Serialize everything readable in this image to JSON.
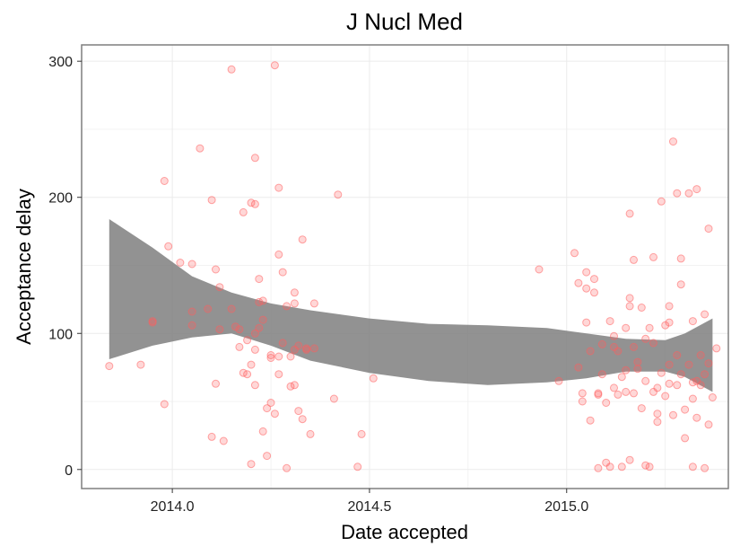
{
  "chart_data": {
    "type": "scatter",
    "title": "J Nucl Med",
    "xlabel": "Date accepted",
    "ylabel": "Acceptance delay",
    "xlim": [
      2013.77,
      2015.41
    ],
    "ylim": [
      -14,
      312
    ],
    "x_ticks": [
      2014.0,
      2014.5,
      2015.0
    ],
    "x_tick_labels": [
      "2014.0",
      "2014.5",
      "2015.0"
    ],
    "y_ticks": [
      0,
      100,
      200,
      300
    ],
    "y_tick_labels": [
      "0",
      "100",
      "200",
      "300"
    ],
    "grid": true,
    "legend": "none",
    "colors": {
      "points": "#ff5f5f",
      "band": "#7f7f7f",
      "grid": "#ebebeb",
      "border": "#7f7f7f"
    },
    "band": {
      "x": [
        2013.84,
        2013.95,
        2014.05,
        2014.15,
        2014.25,
        2014.35,
        2014.5,
        2014.65,
        2014.8,
        2014.95,
        2015.05,
        2015.15,
        2015.25,
        2015.3,
        2015.37
      ],
      "upper": [
        184,
        163,
        142,
        130,
        122,
        117,
        111,
        107,
        106,
        104,
        100,
        96,
        95,
        100,
        111
      ],
      "lower": [
        81,
        91,
        97,
        100,
        91,
        80,
        71,
        65,
        62,
        64,
        67,
        72,
        72,
        68,
        57
      ]
    },
    "points": [
      [
        2013.84,
        76
      ],
      [
        2013.92,
        77
      ],
      [
        2013.95,
        108
      ],
      [
        2013.95,
        109
      ],
      [
        2013.98,
        212
      ],
      [
        2013.98,
        48
      ],
      [
        2013.99,
        164
      ],
      [
        2014.02,
        152
      ],
      [
        2014.05,
        116
      ],
      [
        2014.05,
        106
      ],
      [
        2014.05,
        151
      ],
      [
        2014.07,
        236
      ],
      [
        2014.09,
        118
      ],
      [
        2014.1,
        24
      ],
      [
        2014.1,
        198
      ],
      [
        2014.11,
        147
      ],
      [
        2014.11,
        63
      ],
      [
        2014.12,
        134
      ],
      [
        2014.12,
        103
      ],
      [
        2014.13,
        21
      ],
      [
        2014.15,
        294
      ],
      [
        2014.15,
        118
      ],
      [
        2014.16,
        105
      ],
      [
        2014.17,
        90
      ],
      [
        2014.17,
        103
      ],
      [
        2014.18,
        71
      ],
      [
        2014.18,
        189
      ],
      [
        2014.19,
        70
      ],
      [
        2014.19,
        95
      ],
      [
        2014.2,
        196
      ],
      [
        2014.2,
        77
      ],
      [
        2014.2,
        4
      ],
      [
        2014.21,
        229
      ],
      [
        2014.21,
        195
      ],
      [
        2014.21,
        100
      ],
      [
        2014.21,
        88
      ],
      [
        2014.21,
        62
      ],
      [
        2014.22,
        123
      ],
      [
        2014.22,
        140
      ],
      [
        2014.22,
        104
      ],
      [
        2014.23,
        124
      ],
      [
        2014.23,
        110
      ],
      [
        2014.23,
        28
      ],
      [
        2014.24,
        10
      ],
      [
        2014.24,
        45
      ],
      [
        2014.25,
        82
      ],
      [
        2014.25,
        49
      ],
      [
        2014.25,
        84
      ],
      [
        2014.26,
        297
      ],
      [
        2014.26,
        41
      ],
      [
        2014.27,
        207
      ],
      [
        2014.27,
        158
      ],
      [
        2014.27,
        70
      ],
      [
        2014.27,
        83
      ],
      [
        2014.28,
        145
      ],
      [
        2014.28,
        93
      ],
      [
        2014.29,
        120
      ],
      [
        2014.29,
        1
      ],
      [
        2014.3,
        83
      ],
      [
        2014.3,
        61
      ],
      [
        2014.31,
        62
      ],
      [
        2014.31,
        130
      ],
      [
        2014.31,
        122
      ],
      [
        2014.31,
        88
      ],
      [
        2014.32,
        43
      ],
      [
        2014.32,
        91
      ],
      [
        2014.33,
        169
      ],
      [
        2014.33,
        37
      ],
      [
        2014.34,
        89
      ],
      [
        2014.34,
        88
      ],
      [
        2014.35,
        26
      ],
      [
        2014.36,
        122
      ],
      [
        2014.36,
        89
      ],
      [
        2014.41,
        52
      ],
      [
        2014.42,
        202
      ],
      [
        2014.47,
        2
      ],
      [
        2014.48,
        26
      ],
      [
        2014.51,
        67
      ],
      [
        2014.93,
        147
      ],
      [
        2014.98,
        65
      ],
      [
        2015.02,
        159
      ],
      [
        2015.03,
        137
      ],
      [
        2015.03,
        75
      ],
      [
        2015.04,
        56
      ],
      [
        2015.04,
        50
      ],
      [
        2015.05,
        145
      ],
      [
        2015.05,
        133
      ],
      [
        2015.05,
        108
      ],
      [
        2015.06,
        87
      ],
      [
        2015.06,
        36
      ],
      [
        2015.07,
        140
      ],
      [
        2015.07,
        130
      ],
      [
        2015.08,
        55
      ],
      [
        2015.08,
        56
      ],
      [
        2015.08,
        1
      ],
      [
        2015.09,
        92
      ],
      [
        2015.09,
        70
      ],
      [
        2015.1,
        5
      ],
      [
        2015.1,
        49
      ],
      [
        2015.11,
        109
      ],
      [
        2015.11,
        2
      ],
      [
        2015.12,
        98
      ],
      [
        2015.12,
        90
      ],
      [
        2015.12,
        60
      ],
      [
        2015.13,
        87
      ],
      [
        2015.13,
        55
      ],
      [
        2015.14,
        68
      ],
      [
        2015.14,
        2
      ],
      [
        2015.15,
        104
      ],
      [
        2015.15,
        73
      ],
      [
        2015.15,
        57
      ],
      [
        2015.16,
        126
      ],
      [
        2015.16,
        120
      ],
      [
        2015.16,
        188
      ],
      [
        2015.16,
        7
      ],
      [
        2015.17,
        154
      ],
      [
        2015.17,
        56
      ],
      [
        2015.17,
        90
      ],
      [
        2015.18,
        79
      ],
      [
        2015.18,
        74
      ],
      [
        2015.19,
        119
      ],
      [
        2015.19,
        45
      ],
      [
        2015.2,
        65
      ],
      [
        2015.2,
        96
      ],
      [
        2015.2,
        3
      ],
      [
        2015.21,
        104
      ],
      [
        2015.21,
        2
      ],
      [
        2015.22,
        156
      ],
      [
        2015.22,
        93
      ],
      [
        2015.22,
        57
      ],
      [
        2015.23,
        41
      ],
      [
        2015.23,
        35
      ],
      [
        2015.23,
        60
      ],
      [
        2015.24,
        197
      ],
      [
        2015.24,
        71
      ],
      [
        2015.25,
        106
      ],
      [
        2015.25,
        54
      ],
      [
        2015.26,
        108
      ],
      [
        2015.26,
        120
      ],
      [
        2015.26,
        63
      ],
      [
        2015.26,
        77
      ],
      [
        2015.27,
        241
      ],
      [
        2015.27,
        40
      ],
      [
        2015.28,
        203
      ],
      [
        2015.28,
        84
      ],
      [
        2015.28,
        62
      ],
      [
        2015.29,
        136
      ],
      [
        2015.29,
        155
      ],
      [
        2015.29,
        70
      ],
      [
        2015.3,
        23
      ],
      [
        2015.3,
        44
      ],
      [
        2015.31,
        203
      ],
      [
        2015.31,
        77
      ],
      [
        2015.32,
        109
      ],
      [
        2015.32,
        64
      ],
      [
        2015.32,
        2
      ],
      [
        2015.32,
        52
      ],
      [
        2015.33,
        206
      ],
      [
        2015.33,
        38
      ],
      [
        2015.33,
        65
      ],
      [
        2015.34,
        62
      ],
      [
        2015.34,
        84
      ],
      [
        2015.35,
        114
      ],
      [
        2015.35,
        70
      ],
      [
        2015.35,
        1
      ],
      [
        2015.36,
        177
      ],
      [
        2015.36,
        33
      ],
      [
        2015.36,
        78
      ],
      [
        2015.37,
        53
      ],
      [
        2015.38,
        89
      ]
    ]
  }
}
